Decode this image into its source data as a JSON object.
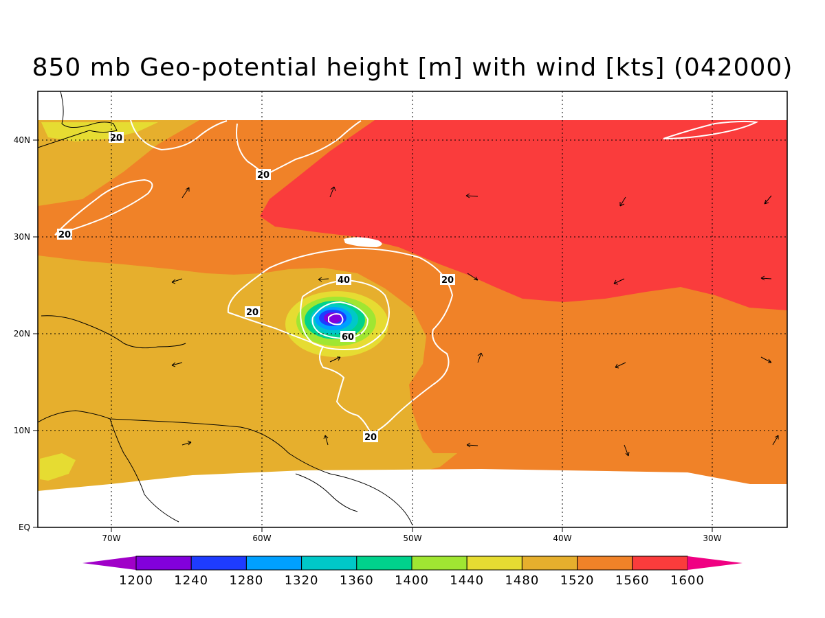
{
  "title": "850 mb Geo-potential height [m] with wind [kts] (042000)",
  "lat_ticks": [
    {
      "deg": 40,
      "label": "40N"
    },
    {
      "deg": 30,
      "label": "30N"
    },
    {
      "deg": 20,
      "label": "20N"
    },
    {
      "deg": 10,
      "label": "10N"
    },
    {
      "deg": 0,
      "label": "EQ"
    }
  ],
  "lon_ticks": [
    {
      "deg": 70,
      "label": "70W"
    },
    {
      "deg": 60,
      "label": "60W"
    },
    {
      "deg": 50,
      "label": "50W"
    },
    {
      "deg": 40,
      "label": "40W"
    },
    {
      "deg": 30,
      "label": "30W"
    }
  ],
  "colorbar": {
    "labels": [
      "1200",
      "1240",
      "1280",
      "1320",
      "1360",
      "1400",
      "1440",
      "1480",
      "1520",
      "1560",
      "1600"
    ],
    "colors": [
      "#a000c8",
      "#8200dc",
      "#1e3cff",
      "#00a0ff",
      "#00c8c8",
      "#00d28c",
      "#a0e632",
      "#e6dc32",
      "#e6af2d",
      "#f08228",
      "#fa3c3c",
      "#f00082"
    ]
  },
  "wind_contour_labels": [
    {
      "text": "20"
    },
    {
      "text": "20"
    },
    {
      "text": "20"
    },
    {
      "text": "20"
    },
    {
      "text": "20"
    },
    {
      "text": "20"
    },
    {
      "text": "40"
    },
    {
      "text": "60"
    }
  ]
}
